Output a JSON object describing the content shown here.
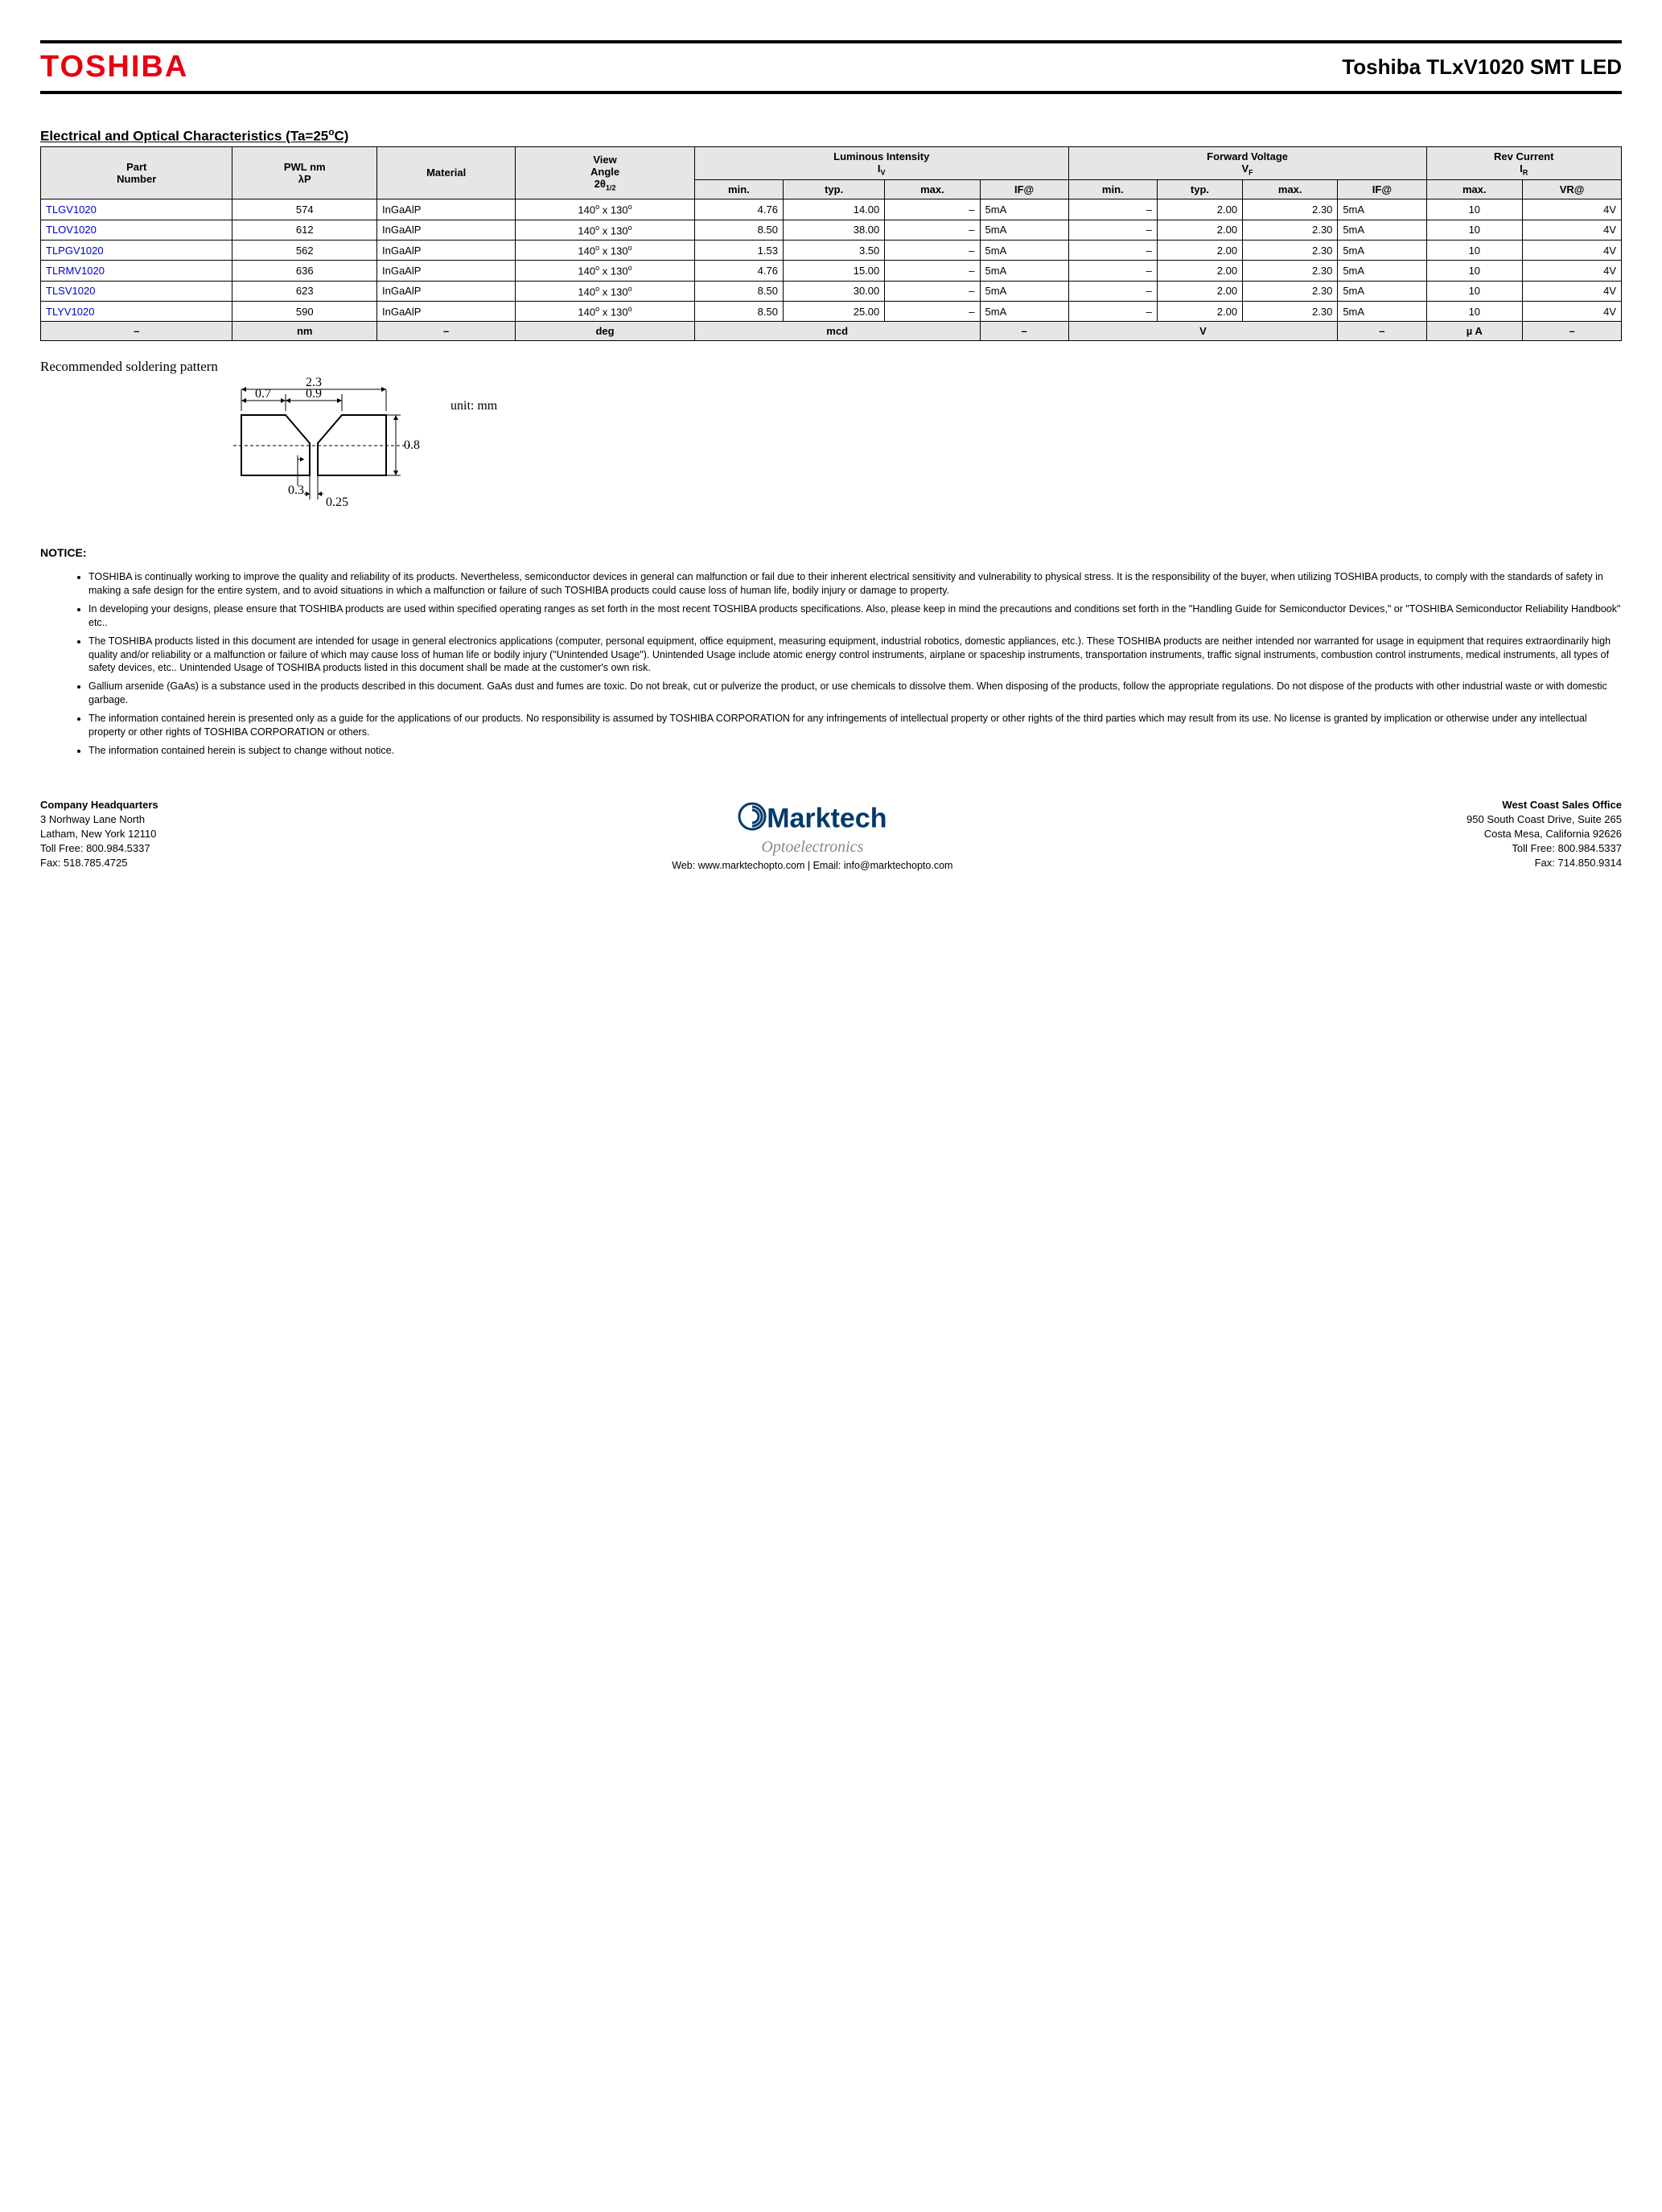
{
  "header": {
    "logo": "TOSHIBA",
    "logo_color": "#e60012",
    "title": "Toshiba TLxV1020 SMT LED"
  },
  "section_title_html": "Electrical and Optical Characteristics (Ta=25<span class='sup'>o</span>C)",
  "table": {
    "top_headers": [
      {
        "label_html": "Part<br>Number",
        "rowspan": 2
      },
      {
        "label_html": "PWL nm<br>λP",
        "rowspan": 2
      },
      {
        "label_html": "Material",
        "rowspan": 2
      },
      {
        "label_html": "View<br>Angle<br>2θ<span class='sub'>1/2</span>",
        "rowspan": 2
      },
      {
        "label_html": "Luminous Intensity<br>I<span class='sub'>V</span>",
        "colspan": 4
      },
      {
        "label_html": "Forward Voltage<br>V<span class='sub'>F</span>",
        "colspan": 4
      },
      {
        "label_html": "Rev Current<br>I<span class='sub'>R</span>",
        "colspan": 2
      }
    ],
    "sub_headers": [
      "min.",
      "typ.",
      "max.",
      "IF@",
      "min.",
      "typ.",
      "max.",
      "IF@",
      "max.",
      "VR@"
    ],
    "rows": [
      {
        "part": "TLGV1020",
        "pwl": "574",
        "mat": "InGaAlP",
        "view": "140<span class='sup'>o</span> x 130<span class='sup'>o</span>",
        "li_min": "4.76",
        "li_typ": "14.00",
        "li_max": "–",
        "li_if": "5mA",
        "fv_min": "–",
        "fv_typ": "2.00",
        "fv_max": "2.30",
        "fv_if": "5mA",
        "rc_max": "10",
        "rc_vr": "4V"
      },
      {
        "part": "TLOV1020",
        "pwl": "612",
        "mat": "InGaAlP",
        "view": "140<span class='sup'>o</span> x 130<span class='sup'>o</span>",
        "li_min": "8.50",
        "li_typ": "38.00",
        "li_max": "–",
        "li_if": "5mA",
        "fv_min": "–",
        "fv_typ": "2.00",
        "fv_max": "2.30",
        "fv_if": "5mA",
        "rc_max": "10",
        "rc_vr": "4V"
      },
      {
        "part": "TLPGV1020",
        "pwl": "562",
        "mat": "InGaAlP",
        "view": "140<span class='sup'>o</span> x 130<span class='sup'>o</span>",
        "li_min": "1.53",
        "li_typ": "3.50",
        "li_max": "–",
        "li_if": "5mA",
        "fv_min": "–",
        "fv_typ": "2.00",
        "fv_max": "2.30",
        "fv_if": "5mA",
        "rc_max": "10",
        "rc_vr": "4V"
      },
      {
        "part": "TLRMV1020",
        "pwl": "636",
        "mat": "InGaAlP",
        "view": "140<span class='sup'>o</span> x 130<span class='sup'>o</span>",
        "li_min": "4.76",
        "li_typ": "15.00",
        "li_max": "–",
        "li_if": "5mA",
        "fv_min": "–",
        "fv_typ": "2.00",
        "fv_max": "2.30",
        "fv_if": "5mA",
        "rc_max": "10",
        "rc_vr": "4V"
      },
      {
        "part": "TLSV1020",
        "pwl": "623",
        "mat": "InGaAlP",
        "view": "140<span class='sup'>o</span> x 130<span class='sup'>o</span>",
        "li_min": "8.50",
        "li_typ": "30.00",
        "li_max": "–",
        "li_if": "5mA",
        "fv_min": "–",
        "fv_typ": "2.00",
        "fv_max": "2.30",
        "fv_if": "5mA",
        "rc_max": "10",
        "rc_vr": "4V"
      },
      {
        "part": "TLYV1020",
        "pwl": "590",
        "mat": "InGaAlP",
        "view": "140<span class='sup'>o</span> x 130<span class='sup'>o</span>",
        "li_min": "8.50",
        "li_typ": "25.00",
        "li_max": "–",
        "li_if": "5mA",
        "fv_min": "–",
        "fv_typ": "2.00",
        "fv_max": "2.30",
        "fv_if": "5mA",
        "rc_max": "10",
        "rc_vr": "4V"
      }
    ],
    "units": [
      "–",
      "nm",
      "–",
      "deg",
      "mcd",
      "",
      "",
      "–",
      "V",
      "",
      "",
      "–",
      "µ A",
      "–"
    ]
  },
  "solder": {
    "caption": "Recommended soldering pattern",
    "unit": "unit: mm",
    "dims": {
      "w_total": "2.3",
      "w_left": "0.7",
      "w_mid": "0.9",
      "h": "0.8",
      "gap": "0.3",
      "notch": "0.25"
    }
  },
  "notice": {
    "title": "NOTICE:",
    "items": [
      "TOSHIBA is continually working to improve the quality and reliability of its products. Nevertheless, semiconductor devices in general can malfunction or fail due to their inherent electrical sensitivity and vulnerability to physical stress. It is the responsibility of the buyer, when utilizing TOSHIBA products, to comply with the standards of safety in making a safe design for the entire system, and to avoid situations in which a malfunction or failure of such TOSHIBA products could cause loss of human life, bodily injury or damage to property.",
      "In developing your designs, please ensure that TOSHIBA products are used within specified operating ranges as set forth in the most recent TOSHIBA products specifications. Also, please keep in mind the precautions and conditions set forth in the \"Handling Guide for Semiconductor Devices,\" or \"TOSHIBA Semiconductor Reliability Handbook\" etc..",
      "The TOSHIBA products listed in this document are intended for usage in general electronics applications (computer, personal equipment, office equipment, measuring equipment, industrial robotics, domestic appliances, etc.). These TOSHIBA products are neither intended nor warranted for usage in equipment that requires extraordinarily high quality and/or reliability or a malfunction or failure of which may cause loss of human life or bodily injury (\"Unintended Usage\"). Unintended Usage include atomic energy control instruments, airplane or spaceship instruments, transportation instruments, traffic signal instruments, combustion control instruments, medical instruments, all types of safety devices, etc.. Unintended Usage of TOSHIBA products listed in this document shall be made at the customer's own risk.",
      "Gallium arsenide (GaAs) is a substance used in the products described in this document. GaAs dust and fumes are toxic. Do not break, cut or pulverize the product, or use chemicals to dissolve them. When disposing of the products, follow the appropriate regulations. Do not dispose of the products with other industrial waste or with domestic garbage.",
      "The information contained herein is presented only as a guide for the applications of our products. No responsibility is assumed by TOSHIBA CORPORATION for any infringements of intellectual property or other rights of the third parties which may result from its use. No license is granted by implication or otherwise under any intellectual property or other rights of TOSHIBA CORPORATION or others.",
      "The information contained herein is subject to change without notice."
    ]
  },
  "footer": {
    "hq": {
      "title": "Company Headquarters",
      "lines": [
        "3 Norhway Lane North",
        "Latham, New York 12110",
        "Toll Free: 800.984.5337",
        "Fax: 518.785.4725"
      ]
    },
    "center": {
      "name": "Marktech",
      "sub": "Optoelectronics",
      "contact": "Web: www.marktechopto.com | Email: info@marktechopto.com",
      "brand_color": "#003a6b"
    },
    "wc": {
      "title": "West Coast Sales Office",
      "lines": [
        "950 South Coast Drive, Suite 265",
        "Costa Mesa, California 92626",
        "Toll Free: 800.984.5337",
        "Fax: 714.850.9314"
      ]
    }
  }
}
